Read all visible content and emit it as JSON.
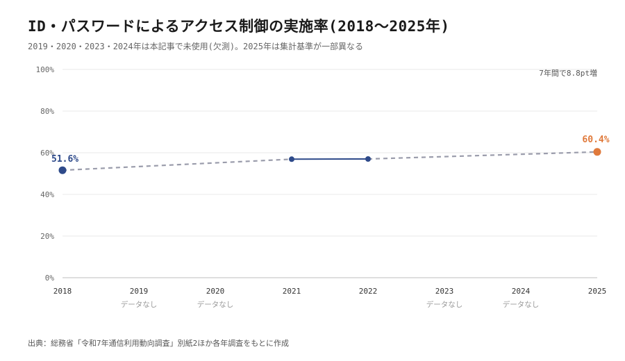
{
  "title": "ID・パスワードによるアクセス制御の実施率(2018〜2025年)",
  "subtitle": "2019・2020・2023・2024年は本記事で未使用(欠測)。2025年は集計基準が一部異なる",
  "source": "出典：総務省「令和7年通信利用動向調査」別紙2ほか各年調査をもとに作成",
  "colors": {
    "accent_blue": "#2e4a8a",
    "accent_orange": "#e07a3c",
    "dash_gray": "#9a9cab",
    "grid": "#e8e8e8"
  },
  "chart_data": {
    "type": "line",
    "x": [
      2018,
      2019,
      2020,
      2021,
      2022,
      2023,
      2024,
      2025
    ],
    "x_labels": [
      "2018",
      "2019",
      "2020",
      "2021",
      "2022",
      "2023",
      "2024",
      "2025"
    ],
    "values": [
      51.6,
      null,
      null,
      56.9,
      57.0,
      null,
      null,
      60.4
    ],
    "missing_label": "データなし",
    "missing_years": [
      2019,
      2020,
      2023,
      2024
    ],
    "ylim": [
      0,
      100
    ],
    "y_ticks": [
      0,
      20,
      40,
      60,
      80,
      100
    ],
    "y_tick_labels": [
      "0%",
      "20%",
      "40%",
      "60%",
      "80%",
      "100%"
    ],
    "point_labels": [
      {
        "x": 2018,
        "text": "51.6%"
      },
      {
        "x": 2025,
        "text": "60.4%"
      }
    ],
    "annotation": "7年間で8.8pt増",
    "grid": true
  }
}
